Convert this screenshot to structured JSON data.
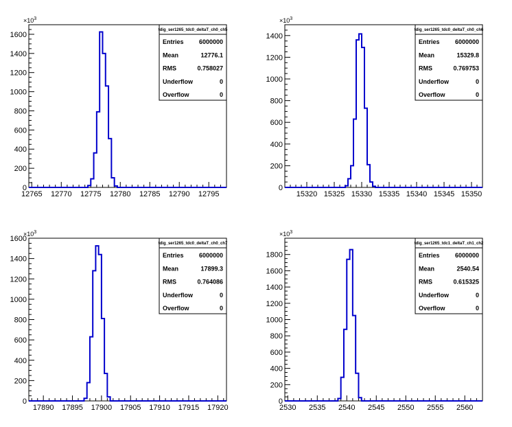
{
  "chart_data": [
    {
      "type": "histogram",
      "name": "tdig_ser1265_tdc0_deltaT_ch0_ch5",
      "x_range": [
        12764.5,
        12798
      ],
      "x_ticks": [
        12765,
        12770,
        12775,
        12780,
        12785,
        12790,
        12795
      ],
      "y_range": [
        0,
        1700
      ],
      "y_ticks": [
        0,
        200,
        400,
        600,
        800,
        1000,
        1200,
        1400,
        1600
      ],
      "y_multiplier": "×10^3",
      "bin_width": 0.5,
      "bins": [
        [
          12774.5,
          20
        ],
        [
          12775.0,
          90
        ],
        [
          12775.5,
          360
        ],
        [
          12776.0,
          790
        ],
        [
          12776.5,
          1625
        ],
        [
          12777.0,
          1400
        ],
        [
          12777.5,
          1060
        ],
        [
          12778.0,
          510
        ],
        [
          12778.5,
          100
        ],
        [
          12779.0,
          15
        ]
      ],
      "stats": [
        {
          "label": "Entries",
          "value": "6000000"
        },
        {
          "label": "Mean",
          "value": "12776.1"
        },
        {
          "label": "RMS",
          "value": "0.758027"
        },
        {
          "label": "Underflow",
          "value": "0"
        },
        {
          "label": "Overflow",
          "value": "0"
        }
      ]
    },
    {
      "type": "histogram",
      "name": "tdig_ser1265_tdc0_deltaT_ch0_ch6",
      "x_range": [
        15316,
        15352
      ],
      "x_ticks": [
        15320,
        15325,
        15330,
        15335,
        15340,
        15345,
        15350
      ],
      "y_range": [
        0,
        1500
      ],
      "y_ticks": [
        0,
        200,
        400,
        600,
        800,
        1000,
        1200,
        1400
      ],
      "y_multiplier": "×10^3",
      "bin_width": 0.5,
      "bins": [
        [
          15327.0,
          15
        ],
        [
          15327.5,
          80
        ],
        [
          15328.0,
          200
        ],
        [
          15328.5,
          630
        ],
        [
          15329.0,
          1360
        ],
        [
          15329.5,
          1415
        ],
        [
          15330.0,
          1290
        ],
        [
          15330.5,
          730
        ],
        [
          15331.0,
          210
        ],
        [
          15331.5,
          50
        ],
        [
          15332.0,
          10
        ]
      ],
      "stats": [
        {
          "label": "Entries",
          "value": "6000000"
        },
        {
          "label": "Mean",
          "value": "15329.8"
        },
        {
          "label": "RMS",
          "value": "0.769753"
        },
        {
          "label": "Underflow",
          "value": "0"
        },
        {
          "label": "Overflow",
          "value": "0"
        }
      ]
    },
    {
      "type": "histogram",
      "name": "tdig_ser1265_tdc0_deltaT_ch0_ch7",
      "x_range": [
        17887.5,
        17921.5
      ],
      "x_ticks": [
        17890,
        17895,
        17900,
        17905,
        17910,
        17915,
        17920
      ],
      "y_range": [
        0,
        1600
      ],
      "y_ticks": [
        0,
        200,
        400,
        600,
        800,
        1000,
        1200,
        1400,
        1600
      ],
      "y_multiplier": "×10^3",
      "bin_width": 0.5,
      "bins": [
        [
          17897.0,
          25
        ],
        [
          17897.5,
          180
        ],
        [
          17898.0,
          630
        ],
        [
          17898.5,
          1280
        ],
        [
          17899.0,
          1525
        ],
        [
          17899.5,
          1440
        ],
        [
          17900.0,
          810
        ],
        [
          17900.5,
          270
        ],
        [
          17901.0,
          40
        ]
      ],
      "stats": [
        {
          "label": "Entries",
          "value": "6000000"
        },
        {
          "label": "Mean",
          "value": "17899.3"
        },
        {
          "label": "RMS",
          "value": "0.764086"
        },
        {
          "label": "Underflow",
          "value": "0"
        },
        {
          "label": "Overflow",
          "value": "0"
        }
      ]
    },
    {
      "type": "histogram",
      "name": "tdig_ser1265_tdc1_deltaT_ch1_ch2",
      "x_range": [
        2529.5,
        2563
      ],
      "x_ticks": [
        2530,
        2535,
        2540,
        2545,
        2550,
        2555,
        2560
      ],
      "y_range": [
        0,
        2000
      ],
      "y_ticks": [
        0,
        200,
        400,
        600,
        800,
        1000,
        1200,
        1400,
        1600,
        1800
      ],
      "y_multiplier": "×10^3",
      "bin_width": 0.5,
      "bins": [
        [
          2538.5,
          30
        ],
        [
          2539.0,
          290
        ],
        [
          2539.5,
          880
        ],
        [
          2540.0,
          1740
        ],
        [
          2540.5,
          1860
        ],
        [
          2541.0,
          1050
        ],
        [
          2541.5,
          340
        ],
        [
          2542.0,
          40
        ]
      ],
      "stats": [
        {
          "label": "Entries",
          "value": "6000000"
        },
        {
          "label": "Mean",
          "value": "2540.54"
        },
        {
          "label": "RMS",
          "value": "0.615325"
        },
        {
          "label": "Underflow",
          "value": "0"
        },
        {
          "label": "Overflow",
          "value": "0"
        }
      ]
    }
  ],
  "colors": {
    "histogram_line": "#0000cc",
    "axis": "#000000",
    "background": "#ffffff"
  }
}
